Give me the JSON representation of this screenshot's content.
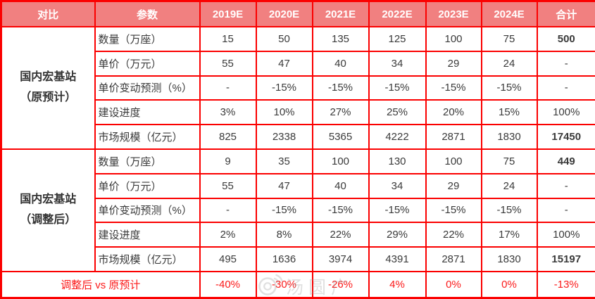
{
  "header": {
    "compare": "对比",
    "parameter": "参数",
    "years": [
      "2019E",
      "2020E",
      "2021E",
      "2022E",
      "2023E",
      "2024E"
    ],
    "total": "合计"
  },
  "groups": [
    {
      "name_line1": "国内宏基站",
      "name_line2": "（原预计）",
      "rows": [
        {
          "label": "数量（万座）",
          "values": [
            "15",
            "50",
            "135",
            "125",
            "100",
            "75"
          ],
          "total": "500",
          "total_bold": true
        },
        {
          "label": "单价（万元）",
          "values": [
            "55",
            "47",
            "40",
            "34",
            "29",
            "24"
          ],
          "total": "-",
          "total_bold": false
        },
        {
          "label": "单价变动预测（%）",
          "values": [
            "-",
            "-15%",
            "-15%",
            "-15%",
            "-15%",
            "-15%"
          ],
          "total": "-",
          "total_bold": false
        },
        {
          "label": "建设进度",
          "values": [
            "3%",
            "10%",
            "27%",
            "25%",
            "20%",
            "15%"
          ],
          "total": "100%",
          "total_bold": false
        },
        {
          "label": "市场规模（亿元）",
          "values": [
            "825",
            "2338",
            "5365",
            "4222",
            "2871",
            "1830"
          ],
          "total": "17450",
          "total_bold": true
        }
      ]
    },
    {
      "name_line1": "国内宏基站",
      "name_line2": "（调整后）",
      "rows": [
        {
          "label": "数量（万座）",
          "values": [
            "9",
            "35",
            "100",
            "130",
            "100",
            "75"
          ],
          "total": "449",
          "total_bold": true
        },
        {
          "label": "单价（万元）",
          "values": [
            "55",
            "47",
            "40",
            "34",
            "29",
            "24"
          ],
          "total": "-",
          "total_bold": false
        },
        {
          "label": "单价变动预测（%）",
          "values": [
            "-",
            "-15%",
            "-15%",
            "-15%",
            "-15%",
            "-15%"
          ],
          "total": "-",
          "total_bold": false
        },
        {
          "label": "建设进度",
          "values": [
            "2%",
            "8%",
            "22%",
            "29%",
            "22%",
            "17%"
          ],
          "total": "100%",
          "total_bold": false
        },
        {
          "label": "市场规模（亿元）",
          "values": [
            "495",
            "1636",
            "3974",
            "4391",
            "2871",
            "1830"
          ],
          "total": "15197",
          "total_bold": true
        }
      ]
    }
  ],
  "footer": {
    "label": "调整后 vs 原预计",
    "values": [
      "-40%",
      "-30%",
      "-26%",
      "4%",
      "0%",
      "0%"
    ],
    "total": "-13%"
  },
  "watermark": {
    "text": "汤圆广"
  },
  "colors": {
    "header_bg": "#f18080",
    "border": "#fb0000",
    "footer_text": "#fb1a1a",
    "body_text": "#3a3a3a"
  }
}
